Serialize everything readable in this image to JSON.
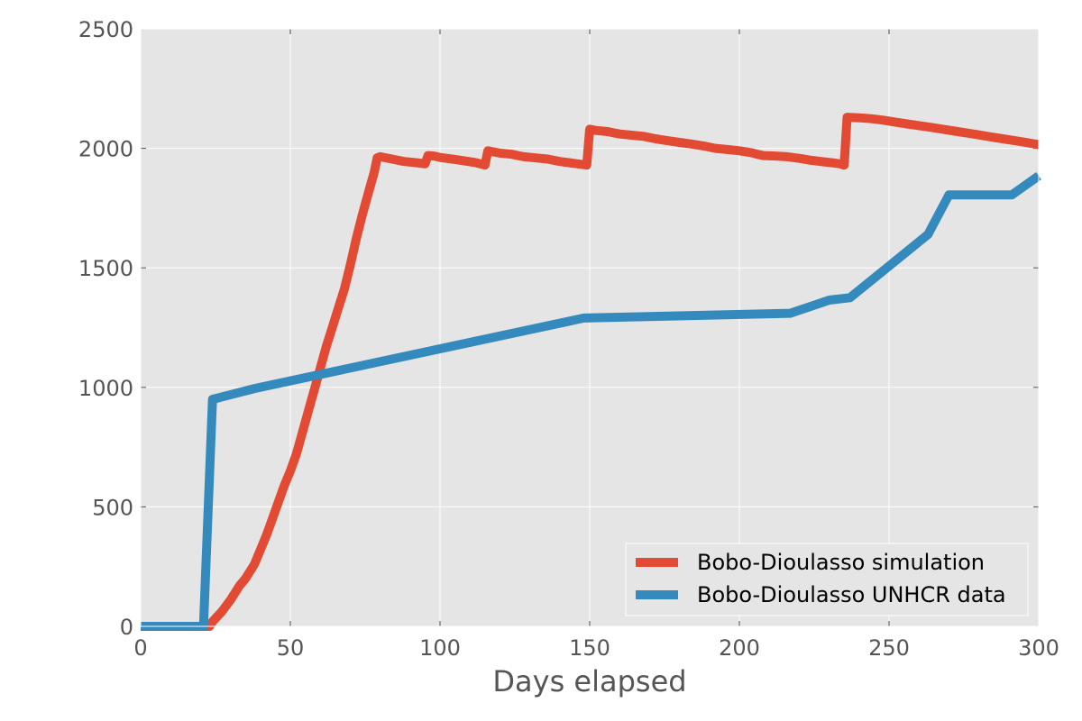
{
  "chart_data": {
    "type": "line",
    "title": "",
    "xlabel": "Days elapsed",
    "ylabel": "",
    "xlim": [
      0,
      300
    ],
    "ylim": [
      0,
      2500
    ],
    "x_ticks": [
      0,
      50,
      100,
      150,
      200,
      250,
      300
    ],
    "y_ticks": [
      0,
      500,
      1000,
      1500,
      2000,
      2500
    ],
    "grid": true,
    "legend_position": "lower-right",
    "background_color": "#e5e5e5",
    "series": [
      {
        "name": "Bobo-Dioulasso simulation",
        "color": "#e24a33",
        "x": [
          0,
          23,
          24,
          27,
          30,
          33,
          35,
          38,
          40,
          42,
          44,
          46,
          48,
          50,
          52,
          54,
          56,
          58,
          60,
          62,
          64,
          66,
          68,
          70,
          72,
          74,
          76,
          78,
          79,
          80,
          84,
          86,
          88,
          92,
          95,
          96,
          98,
          100,
          104,
          108,
          112,
          115,
          116,
          118,
          120,
          124,
          126,
          128,
          132,
          136,
          140,
          143,
          146,
          149,
          150,
          152,
          156,
          158,
          160,
          164,
          168,
          172,
          176,
          180,
          184,
          188,
          192,
          196,
          200,
          204,
          206,
          208,
          212,
          216,
          220,
          224,
          228,
          232,
          234,
          235,
          236,
          240,
          244,
          248,
          252,
          256,
          260,
          264,
          268,
          272,
          276,
          280,
          284,
          288,
          292,
          296,
          300
        ],
        "y": [
          0,
          0,
          20,
          60,
          110,
          170,
          200,
          260,
          320,
          380,
          450,
          520,
          590,
          650,
          720,
          810,
          900,
          990,
          1080,
          1170,
          1250,
          1330,
          1410,
          1510,
          1620,
          1720,
          1810,
          1900,
          1960,
          1965,
          1955,
          1950,
          1945,
          1940,
          1935,
          1970,
          1968,
          1962,
          1955,
          1948,
          1940,
          1930,
          1990,
          1985,
          1980,
          1975,
          1970,
          1965,
          1960,
          1955,
          1945,
          1940,
          1935,
          1930,
          2080,
          2075,
          2070,
          2065,
          2060,
          2055,
          2050,
          2040,
          2032,
          2025,
          2018,
          2010,
          2000,
          1995,
          1990,
          1982,
          1975,
          1970,
          1968,
          1965,
          1958,
          1950,
          1944,
          1938,
          1934,
          1930,
          2130,
          2128,
          2124,
          2118,
          2110,
          2102,
          2095,
          2088,
          2080,
          2072,
          2064,
          2056,
          2048,
          2040,
          2032,
          2024,
          2015
        ]
      },
      {
        "name": "Bobo-Dioulasso UNHCR data",
        "color": "#348abd",
        "x": [
          0,
          21,
          24,
          38,
          148,
          217,
          230,
          237,
          263,
          270,
          291,
          300
        ],
        "y": [
          0,
          0,
          950,
          995,
          1290,
          1310,
          1365,
          1375,
          1640,
          1805,
          1805,
          1885
        ]
      }
    ]
  }
}
